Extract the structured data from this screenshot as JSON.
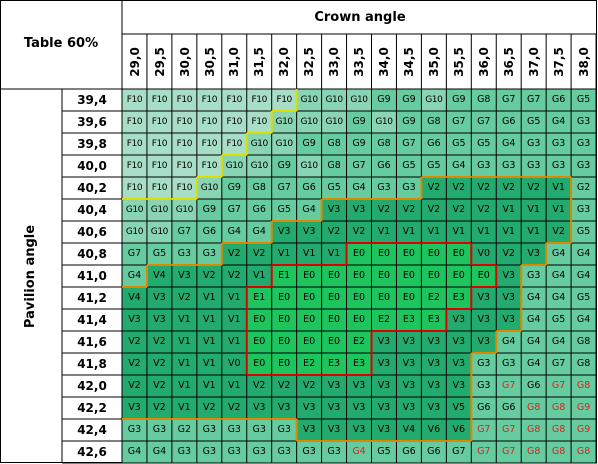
{
  "title": "Table 60%",
  "crown_label": "Crown angle",
  "pavilion_label": "Pavilion angle",
  "crown_angles": [
    "29,0",
    "29,5",
    "30,0",
    "30,5",
    "31,0",
    "31,5",
    "32,0",
    "32,5",
    "33,0",
    "33,5",
    "34,0",
    "34,5",
    "35,0",
    "35,5",
    "36,0",
    "36,5",
    "37,0",
    "37,5",
    "38,0"
  ],
  "pavilion_angles": [
    "39,4",
    "39,6",
    "39,8",
    "40,0",
    "40,2",
    "40,4",
    "40,6",
    "40,8",
    "41,0",
    "41,2",
    "41,4",
    "41,6",
    "41,8",
    "42,0",
    "42,2",
    "42,4",
    "42,6"
  ],
  "grades": [
    [
      "F10",
      "F10",
      "F10",
      "F10",
      "F10",
      "F10",
      "F10",
      "G10",
      "G10",
      "G10",
      "G9",
      "G9",
      "G10",
      "G9",
      "G8",
      "G7",
      "G7",
      "G6",
      "G5"
    ],
    [
      "F10",
      "F10",
      "F10",
      "F10",
      "F10",
      "F10",
      "G10",
      "G10",
      "G10",
      "G9",
      "G10",
      "G9",
      "G8",
      "G7",
      "G7",
      "G6",
      "G5",
      "G4",
      "G3"
    ],
    [
      "F10",
      "F10",
      "F10",
      "F10",
      "F10",
      "G10",
      "G10",
      "G9",
      "G8",
      "G9",
      "G8",
      "G7",
      "G6",
      "G5",
      "G5",
      "G4",
      "G3",
      "G3",
      "G3"
    ],
    [
      "F10",
      "F10",
      "F10",
      "F10",
      "G10",
      "G10",
      "G9",
      "G10",
      "G8",
      "G7",
      "G6",
      "G5",
      "G5",
      "G4",
      "G3",
      "G3",
      "G3",
      "G3",
      "G3"
    ],
    [
      "F10",
      "F10",
      "F10",
      "G10",
      "G9",
      "G8",
      "G7",
      "G6",
      "G5",
      "G4",
      "G3",
      "G3",
      "V2",
      "V2",
      "V2",
      "V2",
      "V2",
      "V1",
      "G2"
    ],
    [
      "G10",
      "G10",
      "G10",
      "G9",
      "G7",
      "G6",
      "G5",
      "G4",
      "V3",
      "V3",
      "V2",
      "V2",
      "V2",
      "V2",
      "V2",
      "V1",
      "V1",
      "V1",
      "G3"
    ],
    [
      "G10",
      "G10",
      "G7",
      "G6",
      "G4",
      "G4",
      "V3",
      "V3",
      "V2",
      "V2",
      "V1",
      "V1",
      "V1",
      "V1",
      "V1",
      "V1",
      "V1",
      "V2",
      "G5"
    ],
    [
      "G7",
      "G5",
      "G3",
      "G3",
      "V2",
      "V2",
      "V1",
      "V1",
      "V1",
      "E0",
      "E0",
      "E0",
      "E0",
      "E0",
      "V0",
      "V2",
      "V3",
      "G4",
      "G4"
    ],
    [
      "G4",
      "V4",
      "V3",
      "V2",
      "V2",
      "V1",
      "E1",
      "E0",
      "E0",
      "E0",
      "E0",
      "E0",
      "E0",
      "E0",
      "E0",
      "V3",
      "G3",
      "G4",
      "G4"
    ],
    [
      "V4",
      "V3",
      "V2",
      "V1",
      "V1",
      "E1",
      "E0",
      "E0",
      "E0",
      "E0",
      "E0",
      "E0",
      "E2",
      "E3",
      "V3",
      "V3",
      "G4",
      "G4",
      "G5"
    ],
    [
      "V3",
      "V3",
      "V1",
      "V1",
      "V1",
      "E0",
      "E0",
      "E0",
      "E0",
      "E0",
      "E2",
      "E3",
      "E3",
      "V3",
      "V3",
      "V3",
      "G4",
      "G5",
      "G4"
    ],
    [
      "V2",
      "V2",
      "V1",
      "V1",
      "V1",
      "E0",
      "E0",
      "E0",
      "E0",
      "E2",
      "V3",
      "V3",
      "V3",
      "V3",
      "V3",
      "G4",
      "G4",
      "G4",
      "G8"
    ],
    [
      "V2",
      "V2",
      "V1",
      "V1",
      "V0",
      "E0",
      "E0",
      "E2",
      "E3",
      "E3",
      "V3",
      "V3",
      "V3",
      "V3",
      "G3",
      "G3",
      "G4",
      "G7",
      "G8"
    ],
    [
      "V2",
      "V2",
      "V1",
      "V1",
      "V1",
      "V2",
      "V2",
      "V2",
      "V3",
      "V3",
      "V3",
      "V3",
      "V3",
      "V3",
      "G3",
      "G7",
      "G6",
      "G7",
      "G8"
    ],
    [
      "V3",
      "V2",
      "V1",
      "V2",
      "V2",
      "V3",
      "V3",
      "V3",
      "V3",
      "V3",
      "V3",
      "V3",
      "V3",
      "V5",
      "G6",
      "G6",
      "G8",
      "G8",
      "G9"
    ],
    [
      "G3",
      "G3",
      "G2",
      "G3",
      "G3",
      "G3",
      "G3",
      "V3",
      "V3",
      "V3",
      "V3",
      "V4",
      "V6",
      "V6",
      "G7",
      "G7",
      "G8",
      "G8",
      "G9"
    ],
    [
      "G4",
      "G4",
      "G3",
      "G3",
      "G3",
      "G3",
      "G3",
      "G3",
      "G3",
      "G4",
      "G5",
      "G6",
      "G6",
      "G7",
      "G7",
      "G7",
      "G8",
      "G8",
      "G8"
    ]
  ],
  "colors": {
    "F": "#a9dec6",
    "G10": "#89d4b3",
    "G": "#66cca0",
    "V": "#23aa6e",
    "E": "#1ec45e",
    "border_F": "#33dd33",
    "border_G10": "#dddd00",
    "border_V": "#dd8800",
    "border_E": "#dd0000",
    "grid_line": "#000000",
    "highlight_text": "#dd2222"
  }
}
